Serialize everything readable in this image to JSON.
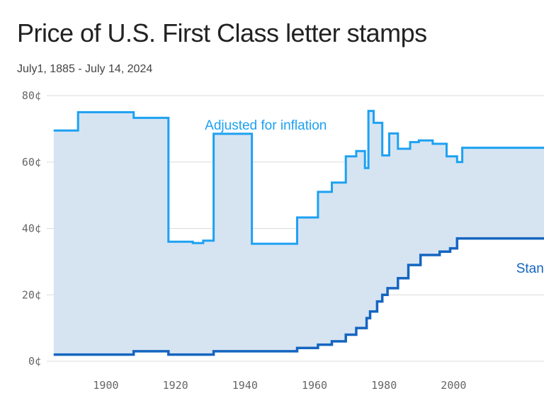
{
  "title": "Price of U.S. First Class letter stamps",
  "subtitle": "July1, 1885 - July 14, 2024",
  "colors": {
    "adjusted": "#1da1f2",
    "stamp": "#1565c0",
    "fill": "#d6e4f2",
    "grid": "#dcdcdc"
  },
  "chart_data": {
    "type": "line",
    "step": true,
    "area_between_series": true,
    "xlim": [
      1883,
      2026
    ],
    "ylim": [
      0,
      80
    ],
    "x_ticks": [
      1900,
      1920,
      1940,
      1960,
      1980,
      2000
    ],
    "x_tick_labels": [
      "1900",
      "1920",
      "1940",
      "1960",
      "1980",
      "2000"
    ],
    "y_ticks": [
      0,
      20,
      40,
      60,
      80
    ],
    "y_tick_labels": [
      "0¢",
      "20¢",
      "40¢",
      "60¢",
      "80¢"
    ],
    "grid": true,
    "series": [
      {
        "name": "Adjusted for inflation",
        "label_at": [
          1946,
          71
        ],
        "points": [
          [
            1885,
            69.5
          ],
          [
            1892,
            75
          ],
          [
            1908,
            73.3
          ],
          [
            1918,
            36
          ],
          [
            1925,
            35.6
          ],
          [
            1928,
            36.3
          ],
          [
            1931,
            68.5
          ],
          [
            1942,
            35.4
          ],
          [
            1955,
            43.3
          ],
          [
            1961,
            51
          ],
          [
            1965,
            53.8
          ],
          [
            1969,
            61.7
          ],
          [
            1972,
            63.3
          ],
          [
            1974.5,
            58.2
          ],
          [
            1975.5,
            75.4
          ],
          [
            1977,
            71.8
          ],
          [
            1979.5,
            62
          ],
          [
            1981.5,
            68.6
          ],
          [
            1984,
            64
          ],
          [
            1987.5,
            66
          ],
          [
            1990,
            66.5
          ],
          [
            1994,
            65.5
          ],
          [
            1998,
            61.7
          ],
          [
            2001,
            60
          ],
          [
            2002.5,
            64.3
          ],
          [
            2026,
            64.3
          ]
        ]
      },
      {
        "name": "Stamp price",
        "label_visible_text": "Stan",
        "label_at": [
          2018,
          28
        ],
        "points": [
          [
            1885,
            2
          ],
          [
            1908,
            3
          ],
          [
            1918,
            2
          ],
          [
            1931,
            3
          ],
          [
            1955,
            4
          ],
          [
            1961,
            5
          ],
          [
            1965,
            6
          ],
          [
            1969,
            8
          ],
          [
            1972,
            10
          ],
          [
            1975,
            13
          ],
          [
            1976,
            15
          ],
          [
            1978,
            18
          ],
          [
            1979.5,
            20
          ],
          [
            1981,
            22
          ],
          [
            1984,
            25
          ],
          [
            1987,
            29
          ],
          [
            1990.5,
            32
          ],
          [
            1996,
            33
          ],
          [
            1999,
            34
          ],
          [
            2001,
            37
          ],
          [
            2026,
            37
          ]
        ]
      }
    ]
  }
}
